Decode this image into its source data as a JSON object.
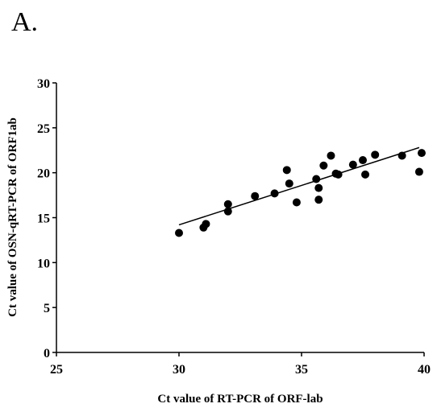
{
  "chart_data": {
    "type": "scatter",
    "panel_label": "A.",
    "x_label": "Ct value of RT-PCR of ORF-lab",
    "y_label": "Ct value of OSN-qRT-PCR of ORF1ab",
    "xlim": [
      25,
      40
    ],
    "xticks": [
      25,
      30,
      35,
      40
    ],
    "ylim": [
      0,
      30
    ],
    "yticks": [
      0,
      5,
      10,
      15,
      20,
      25,
      30
    ],
    "color": "#000000",
    "x": [
      30.0,
      31.0,
      31.1,
      32.0,
      32.0,
      33.1,
      33.9,
      34.4,
      34.5,
      34.8,
      35.6,
      35.7,
      35.7,
      35.9,
      36.2,
      36.4,
      36.5,
      37.1,
      37.5,
      37.6,
      38.0,
      39.1,
      39.8,
      39.9
    ],
    "y": [
      13.3,
      13.9,
      14.3,
      16.5,
      15.7,
      17.4,
      17.7,
      20.3,
      18.8,
      16.7,
      19.3,
      17.0,
      18.3,
      20.8,
      21.9,
      19.9,
      19.8,
      20.9,
      21.4,
      19.8,
      22.0,
      21.9,
      20.1,
      22.2
    ],
    "trend_line": {
      "x": [
        30.0,
        39.8
      ],
      "y": [
        14.2,
        22.8
      ]
    }
  }
}
